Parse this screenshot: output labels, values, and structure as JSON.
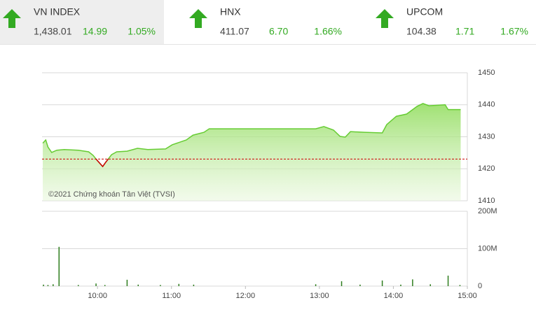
{
  "tickers": [
    {
      "name": "VN INDEX",
      "value": "1,438.01",
      "change": "14.99",
      "percent": "1.05%"
    },
    {
      "name": "HNX",
      "value": "411.07",
      "change": "6.70",
      "percent": "1.66%"
    },
    {
      "name": "UPCOM",
      "value": "104.38",
      "change": "1.71",
      "percent": "1.67%"
    }
  ],
  "chart_data": [
    {
      "type": "area",
      "color": "#66cc33",
      "below_color": "#cc0000",
      "annotation": "©2021 Chứng khoán Tân Việt (TVSI)",
      "reference": 1423.02,
      "x": [
        9.26,
        9.3,
        9.33,
        9.38,
        9.45,
        9.55,
        9.74,
        9.88,
        9.94,
        10.0,
        10.07,
        10.11,
        10.19,
        10.26,
        10.4,
        10.54,
        10.68,
        10.92,
        11.01,
        11.2,
        11.29,
        11.44,
        11.51,
        12.0,
        12.95,
        13.06,
        13.19,
        13.28,
        13.35,
        13.42,
        13.61,
        13.85,
        13.91,
        14.04,
        14.18,
        14.32,
        14.4,
        14.48,
        14.7,
        14.74,
        14.91
      ],
      "values": [
        1428.0,
        1429.0,
        1426.8,
        1425.1,
        1425.8,
        1426.0,
        1425.8,
        1425.3,
        1424.2,
        1422.5,
        1420.7,
        1422.0,
        1424.4,
        1425.3,
        1425.5,
        1426.4,
        1426.0,
        1426.2,
        1427.5,
        1429.0,
        1430.5,
        1431.4,
        1432.5,
        1432.5,
        1432.5,
        1433.2,
        1432.1,
        1430.1,
        1429.9,
        1431.6,
        1431.4,
        1431.2,
        1433.8,
        1436.4,
        1437.1,
        1439.5,
        1440.4,
        1439.7,
        1440.0,
        1438.5,
        1438.5
      ],
      "xlim": [
        9.25,
        15
      ],
      "ylim": [
        1410,
        1450
      ],
      "yticks": [
        1410,
        1420,
        1430,
        1440,
        1450
      ]
    },
    {
      "type": "bar",
      "color": "#2e7d1e",
      "x": [
        9.27,
        9.33,
        9.4,
        9.48,
        9.74,
        9.98,
        10.1,
        10.4,
        10.55,
        10.85,
        11.1,
        11.3,
        12.95,
        13.3,
        13.55,
        13.85,
        14.1,
        14.26,
        14.5,
        14.74,
        14.9
      ],
      "values": [
        4000000,
        3000000,
        5000000,
        105000000,
        3000000,
        7000000,
        3000000,
        17000000,
        4000000,
        3000000,
        6000000,
        4000000,
        5000000,
        13000000,
        4000000,
        15000000,
        4000000,
        18000000,
        5000000,
        28000000,
        3000000
      ],
      "xlim": [
        9.25,
        15
      ],
      "ylim": [
        0,
        200000000
      ],
      "yticks": [
        0,
        {
          "value": 100000000,
          "label": "100M"
        },
        {
          "value": 200000000,
          "label": "200M"
        }
      ],
      "xticks": [
        {
          "value": 10,
          "label": "10:00"
        },
        {
          "value": 11,
          "label": "11:00"
        },
        {
          "value": 12,
          "label": "12:00"
        },
        {
          "value": 13,
          "label": "13:00"
        },
        {
          "value": 14,
          "label": "14:00"
        },
        {
          "value": 15,
          "label": "15:00"
        }
      ]
    }
  ]
}
